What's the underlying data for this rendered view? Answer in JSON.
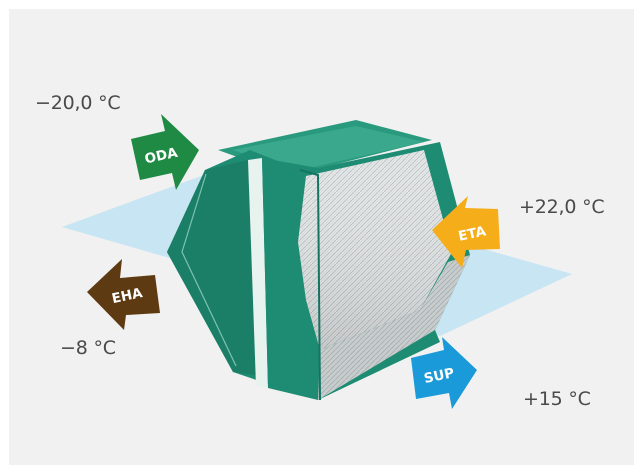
{
  "temperatures": {
    "oda": "−20,0 °C",
    "eta": "+22,0 °C",
    "eha": "−8 °C",
    "sup": "+15 °C"
  },
  "arrows": {
    "oda": {
      "label": "ODA",
      "color": "#1f8a43"
    },
    "eta": {
      "label": "ETA",
      "color": "#f5ad19"
    },
    "eha": {
      "label": "EHA",
      "color": "#5e3a12"
    },
    "sup": {
      "label": "SUP",
      "color": "#1a9ad8"
    }
  },
  "colors": {
    "unit_green": "#1e8c72",
    "air_plane": "#bfe3f2",
    "background": "#f1f1f1"
  }
}
